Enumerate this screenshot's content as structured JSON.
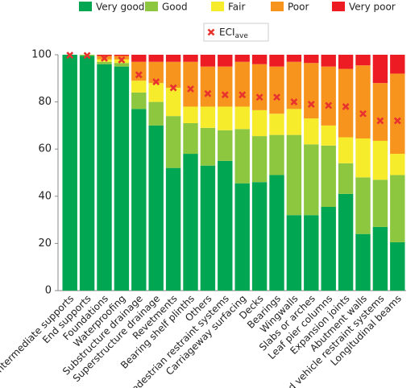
{
  "chart_data": {
    "type": "stacked_bar",
    "categories": [
      "Intermediate supports",
      "End supports",
      "Foundations",
      "Waterproofing",
      "Substructure drainage",
      "Superstructure drainage",
      "Revetments",
      "Bearing shelf plinths",
      "Others",
      "Pedestrian restraint systems",
      "Carriageway surfacing",
      "Decks",
      "Bearings",
      "Wingwalls",
      "Slabs or arches",
      "Leaf pier columns",
      "Expansion joints",
      "Abutment walls",
      "Road vehicle restraint systems",
      "Longitudinal beams"
    ],
    "series": [
      {
        "name": "Very good",
        "color": "#00a651",
        "values": [
          100,
          99.5,
          96,
          95,
          77,
          70,
          52,
          58,
          53,
          55,
          45.5,
          46,
          49,
          32,
          32,
          35.5,
          41,
          24,
          27,
          20.5
        ]
      },
      {
        "name": "Good",
        "color": "#8dc63f",
        "values": [
          0,
          0.5,
          1,
          1.5,
          7,
          10,
          22,
          13,
          16,
          13,
          23,
          19.5,
          17,
          34,
          30,
          26,
          13,
          24,
          20,
          28.5
        ]
      },
      {
        "name": "Fair",
        "color": "#f7ec2b",
        "values": [
          0,
          0,
          1,
          1.5,
          5,
          8,
          12,
          7,
          9,
          10,
          9.5,
          11,
          9,
          11,
          11,
          8.5,
          11,
          16.5,
          16.5,
          9
        ]
      },
      {
        "name": "Poor",
        "color": "#f7941d",
        "values": [
          0,
          0,
          1.5,
          1.5,
          8,
          9,
          11,
          19,
          17,
          17,
          19,
          19.5,
          20,
          20,
          23.5,
          25,
          29,
          31,
          24.5,
          34
        ]
      },
      {
        "name": "Very poor",
        "color": "#ed1c24",
        "values": [
          0,
          0,
          0.5,
          0.5,
          3,
          3,
          3,
          3,
          5,
          5,
          3,
          4,
          5,
          3,
          3.5,
          5,
          6,
          4.5,
          12,
          8
        ]
      }
    ],
    "marker_series": {
      "name": "ECI",
      "subscript": "ave",
      "color": "#e8322f",
      "values": [
        99.8,
        99.7,
        98.5,
        97.8,
        91.5,
        88.5,
        86,
        85.5,
        83.5,
        83,
        83,
        82,
        82,
        80,
        79,
        78.5,
        78,
        75,
        72,
        72
      ]
    },
    "ylim": [
      0,
      100
    ],
    "yticks": [
      0,
      20,
      40,
      60,
      80,
      100
    ],
    "grid": false
  }
}
